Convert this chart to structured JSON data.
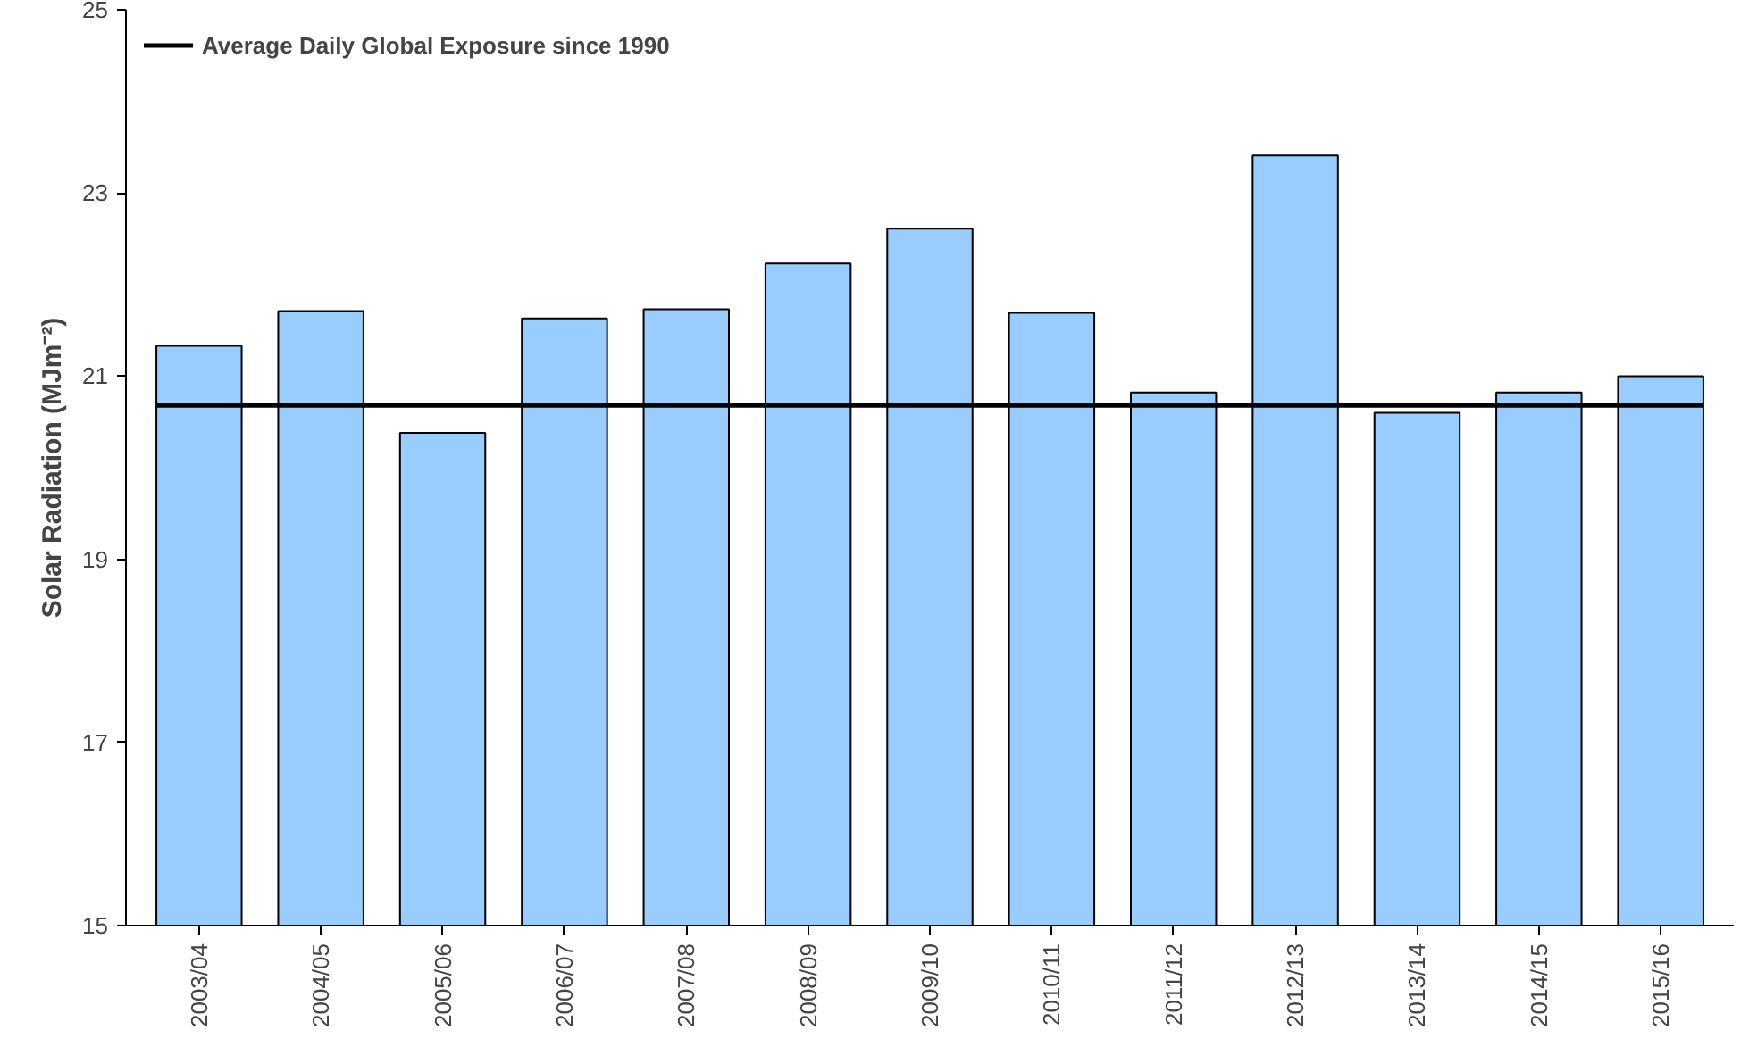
{
  "chart_data": {
    "type": "bar",
    "ylabel": "Solar Radiation (MJm⁻²)",
    "categories": [
      "2003/04",
      "2004/05",
      "2005/06",
      "2006/07",
      "2007/08",
      "2008/09",
      "2009/10",
      "2010/11",
      "2011/12",
      "2012/13",
      "2013/14",
      "2014/15",
      "2015/16"
    ],
    "values": [
      21.33,
      21.71,
      20.38,
      21.63,
      21.73,
      22.23,
      22.61,
      21.69,
      20.82,
      23.41,
      20.6,
      20.82,
      21.0
    ],
    "color": "#99ccff",
    "ylim": [
      15,
      25
    ],
    "yticks": [
      15,
      17,
      19,
      21,
      23,
      25
    ],
    "grid": false,
    "legend": "top left",
    "ref_lines": [
      {
        "axis": "y",
        "value": 20.68,
        "label": "Average Daily Global Exposure since 1990",
        "color": "#000000",
        "line_style": "solid"
      }
    ]
  }
}
